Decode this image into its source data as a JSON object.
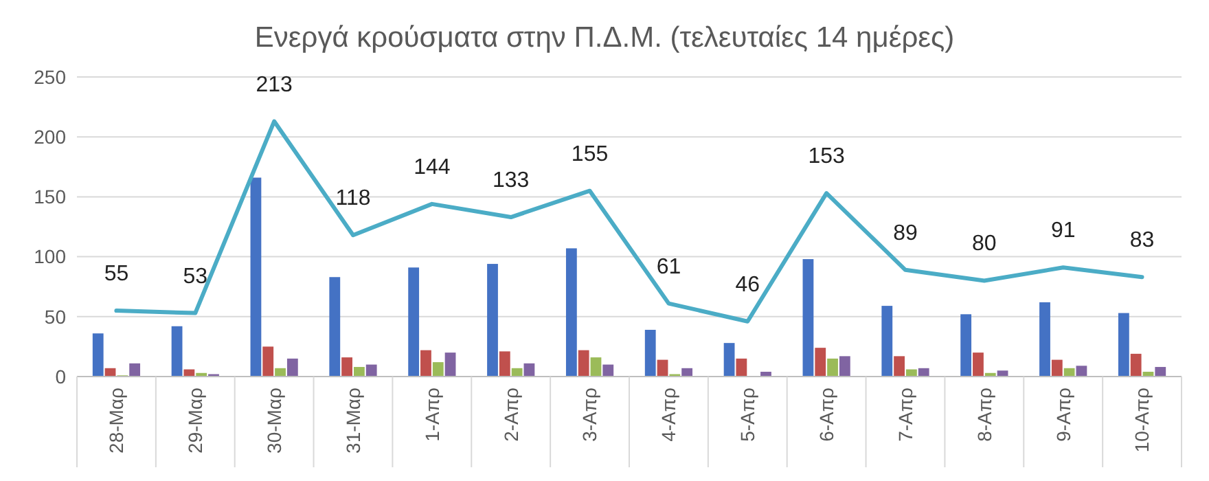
{
  "chart_data": {
    "type": "bar",
    "title": "Ενεργά κρούσματα στην Π.Δ.Μ. (τελευταίες 14 ημέρες)",
    "categories": [
      "28-Μαρ",
      "29-Μαρ",
      "30-Μαρ",
      "31-Μαρ",
      "1-Απρ",
      "2-Απρ",
      "3-Απρ",
      "4-Απρ",
      "5-Απρ",
      "6-Απρ",
      "7-Απρ",
      "8-Απρ",
      "9-Απρ",
      "10-Απρ"
    ],
    "series": [
      {
        "color": "#4472c4",
        "values": [
          36,
          42,
          166,
          83,
          91,
          94,
          107,
          39,
          28,
          98,
          59,
          52,
          62,
          53
        ]
      },
      {
        "color": "#c0504d",
        "values": [
          7,
          6,
          25,
          16,
          22,
          21,
          22,
          14,
          15,
          24,
          17,
          20,
          14,
          19
        ]
      },
      {
        "color": "#9bbb59",
        "values": [
          1,
          3,
          7,
          8,
          12,
          7,
          16,
          2,
          0,
          15,
          6,
          3,
          7,
          4
        ]
      },
      {
        "color": "#8064a2",
        "values": [
          11,
          2,
          15,
          10,
          20,
          11,
          10,
          7,
          4,
          17,
          7,
          5,
          9,
          8
        ]
      },
      {
        "type": "line",
        "color": "#4bacc6",
        "values": [
          55,
          53,
          213,
          118,
          144,
          133,
          155,
          61,
          46,
          153,
          89,
          80,
          91,
          83
        ],
        "value_labels": [
          "55",
          "53",
          "213",
          "118",
          "144",
          "133",
          "155",
          "61",
          "46",
          "153",
          "89",
          "80",
          "91",
          "83"
        ]
      }
    ],
    "ylim": [
      0,
      250
    ],
    "yticks": [
      0,
      50,
      100,
      150,
      200,
      250
    ],
    "grid": "y"
  }
}
